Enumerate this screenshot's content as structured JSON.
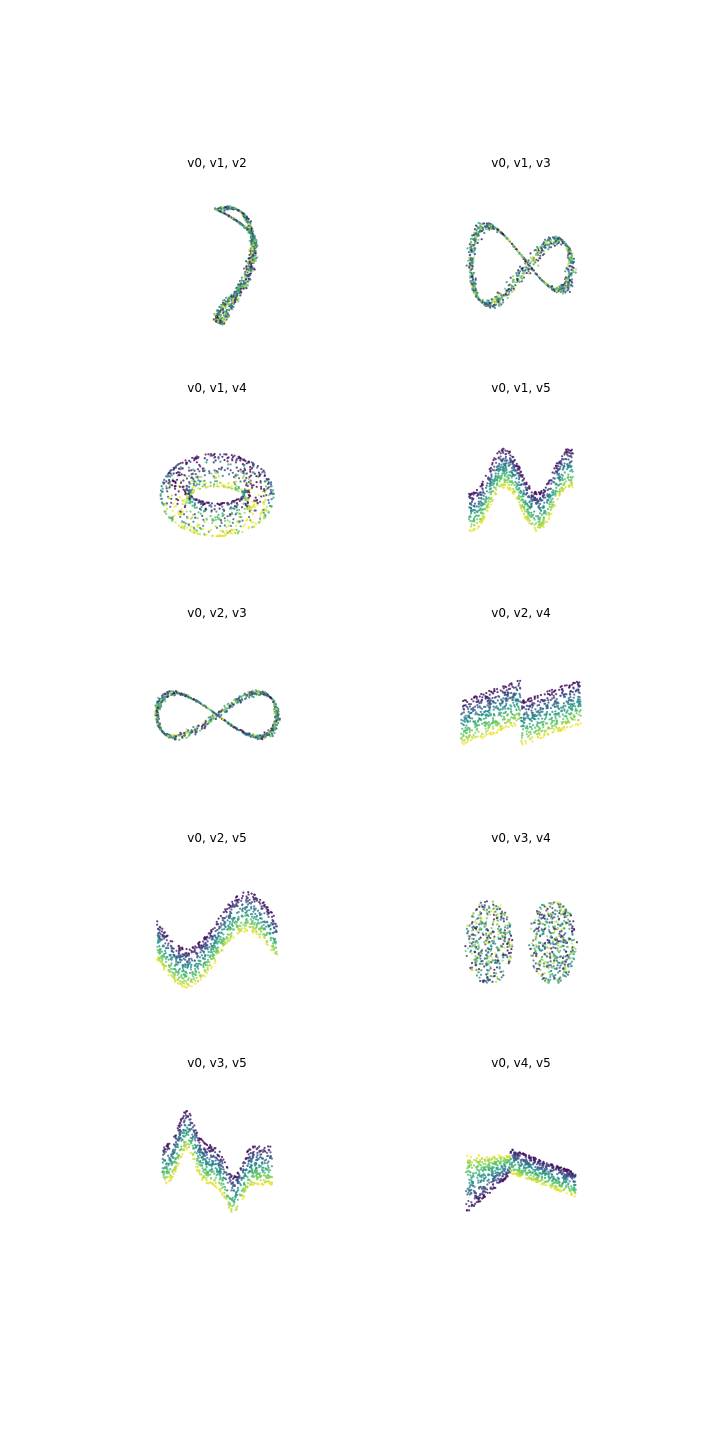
{
  "figure": {
    "colormap": "viridis",
    "colors": [
      "#440154",
      "#3b528b",
      "#21918c",
      "#5ec962",
      "#fde725"
    ],
    "axes_visible": false
  },
  "chart_data": [
    {
      "type": "scatter",
      "title": "v0, v1, v2",
      "x_var": "v0",
      "y_var": "v1",
      "z_var": "v2",
      "shape": "loop-twist"
    },
    {
      "type": "scatter",
      "title": "v0, v1, v3",
      "x_var": "v0",
      "y_var": "v1",
      "z_var": "v3",
      "shape": "loop-wave"
    },
    {
      "type": "scatter",
      "title": "v0, v1, v4",
      "x_var": "v0",
      "y_var": "v1",
      "z_var": "v4",
      "shape": "torus"
    },
    {
      "type": "scatter",
      "title": "v0, v1, v5",
      "x_var": "v0",
      "y_var": "v1",
      "z_var": "v5",
      "shape": "wave-band"
    },
    {
      "type": "scatter",
      "title": "v0, v2, v3",
      "x_var": "v0",
      "y_var": "v2",
      "z_var": "v3",
      "shape": "figure-eight"
    },
    {
      "type": "scatter",
      "title": "v0, v2, v4",
      "x_var": "v0",
      "y_var": "v2",
      "z_var": "v4",
      "shape": "z-sheet"
    },
    {
      "type": "scatter",
      "title": "v0, v2, v5",
      "x_var": "v0",
      "y_var": "v2",
      "z_var": "v5",
      "shape": "s-sheet"
    },
    {
      "type": "scatter",
      "title": "v0, v3, v4",
      "x_var": "v0",
      "y_var": "v3",
      "z_var": "v4",
      "shape": "twin-blobs"
    },
    {
      "type": "scatter",
      "title": "v0, v3, v5",
      "x_var": "v0",
      "y_var": "v3",
      "z_var": "v5",
      "shape": "twin-peaks"
    },
    {
      "type": "scatter",
      "title": "v0, v4, v5",
      "x_var": "v0",
      "y_var": "v4",
      "z_var": "v5",
      "shape": "fan"
    }
  ]
}
